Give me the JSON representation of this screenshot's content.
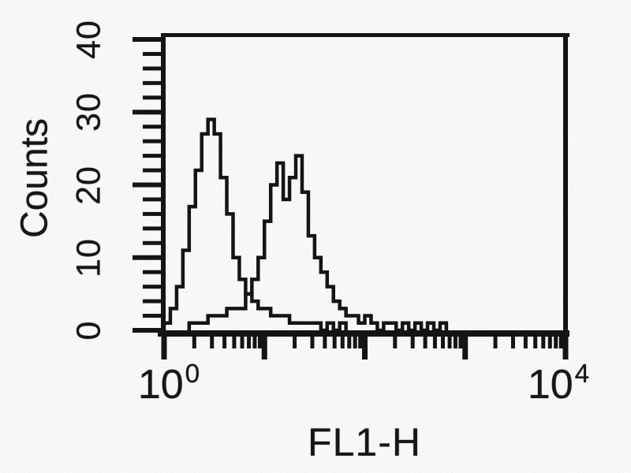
{
  "figure": {
    "background_color": "#fdfdfc",
    "ink_color": "#141414",
    "style": "scanned black-and-white flow cytometry histogram"
  },
  "chart_data": {
    "type": "line",
    "subtype": "flow-cytometry-histogram-overlay",
    "title": "",
    "xlabel": "FL1-H",
    "ylabel": "Counts",
    "x_axis": {
      "scale": "log",
      "min": 1,
      "max": 10000,
      "decades": 4,
      "tick_labels": [
        {
          "base": "10",
          "exp": "0"
        },
        {
          "base": "10",
          "exp": "4"
        }
      ],
      "minor_ticks": "log positions 2-9 per decade, major tick each decade"
    },
    "y_axis": {
      "min": 0,
      "max": 40,
      "major_ticks": [
        0,
        10,
        20,
        30,
        40
      ],
      "minor_tick_step": 2
    },
    "grid": false,
    "legend": false,
    "bins_per_decade": 16,
    "series": [
      {
        "name": "left-peak-histogram",
        "peak_counts": 29,
        "peak_x_approx": 2.8,
        "color": "#141414",
        "counts": [
          1,
          3,
          6,
          11,
          17,
          22,
          27,
          29,
          27,
          21,
          16,
          10,
          7,
          5,
          4,
          3,
          3,
          2,
          2,
          2,
          1,
          1,
          1,
          1,
          1,
          0,
          1,
          0,
          1,
          0,
          0,
          0,
          0,
          0,
          0,
          0,
          0,
          0,
          0,
          0,
          0,
          0,
          0,
          0,
          0,
          0,
          0,
          0,
          0,
          0,
          0,
          0,
          0,
          0,
          0,
          0,
          0,
          0,
          0,
          0,
          0,
          0,
          0,
          0
        ]
      },
      {
        "name": "right-peak-histogram",
        "peak_counts": 24,
        "peak_x_approx": 24,
        "color": "#141414",
        "counts": [
          0,
          0,
          0,
          0,
          1,
          1,
          1,
          2,
          2,
          2,
          3,
          3,
          3,
          5,
          7,
          10,
          15,
          20,
          23,
          18,
          21,
          24,
          19,
          13,
          10,
          8,
          6,
          4,
          3,
          2,
          2,
          1,
          2,
          1,
          0,
          1,
          1,
          0,
          1,
          0,
          1,
          0,
          1,
          0,
          1,
          0,
          0,
          0,
          0,
          0,
          0,
          0,
          0,
          0,
          0,
          0,
          0,
          0,
          0,
          0,
          0,
          0,
          0,
          0
        ]
      }
    ]
  }
}
